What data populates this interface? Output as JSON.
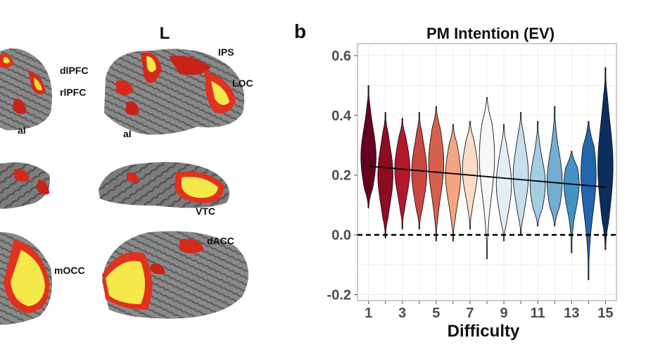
{
  "brain_panel": {
    "hemisphere_label": "L",
    "region_labels": {
      "dlpfc": "dlPFC",
      "rlpfc": "rlPFC",
      "ai_left": "aI",
      "ai_right": "aI",
      "ips": "IPS",
      "loc": "LOC",
      "vtc": "VTC",
      "dacc": "dACC",
      "mocc": "mOCC"
    }
  },
  "panel_letter": "b",
  "chart_data": {
    "type": "violin",
    "title": "PM Intention (EV)",
    "xlabel": "Difficulty",
    "ylabel": "",
    "ylim": [
      -0.22,
      0.64
    ],
    "y_ticks": [
      -0.2,
      0.0,
      0.2,
      0.4,
      0.6
    ],
    "y_tick_labels": [
      "-0.2",
      "0.0",
      "0.2",
      "0.4",
      "0.6"
    ],
    "x_ticks": [
      1,
      3,
      5,
      7,
      9,
      11,
      13,
      15
    ],
    "x_tick_labels": [
      "1",
      "3",
      "5",
      "7",
      "9",
      "11",
      "13",
      "15"
    ],
    "grid": true,
    "reference_line": {
      "y": 0.0,
      "style": "dashed"
    },
    "trend_line": {
      "x": [
        1,
        15
      ],
      "y": [
        0.23,
        0.16
      ]
    },
    "series": [
      {
        "x": 1,
        "min": 0.09,
        "max": 0.5,
        "mode": 0.26,
        "color": "#67001f"
      },
      {
        "x": 2,
        "min": -0.01,
        "max": 0.41,
        "mode": 0.2,
        "color": "#8e0b24"
      },
      {
        "x": 3,
        "min": 0.02,
        "max": 0.39,
        "mode": 0.22,
        "color": "#b2182b"
      },
      {
        "x": 4,
        "min": 0.02,
        "max": 0.41,
        "mode": 0.21,
        "color": "#c94741"
      },
      {
        "x": 5,
        "min": -0.02,
        "max": 0.43,
        "mode": 0.24,
        "color": "#d6604d"
      },
      {
        "x": 6,
        "min": -0.02,
        "max": 0.37,
        "mode": 0.2,
        "color": "#f4a582"
      },
      {
        "x": 7,
        "min": 0.02,
        "max": 0.38,
        "mode": 0.22,
        "color": "#fddbc7"
      },
      {
        "x": 8,
        "min": -0.08,
        "max": 0.46,
        "mode": 0.26,
        "color": "#f7f7f7"
      },
      {
        "x": 9,
        "min": -0.02,
        "max": 0.37,
        "mode": 0.17,
        "color": "#e3eff5"
      },
      {
        "x": 10,
        "min": 0.0,
        "max": 0.41,
        "mode": 0.2,
        "color": "#c6dfec"
      },
      {
        "x": 11,
        "min": 0.03,
        "max": 0.38,
        "mode": 0.17,
        "color": "#a3cde3"
      },
      {
        "x": 12,
        "min": 0.03,
        "max": 0.43,
        "mode": 0.18,
        "color": "#74add1"
      },
      {
        "x": 13,
        "min": -0.06,
        "max": 0.28,
        "mode": 0.17,
        "color": "#4393c3"
      },
      {
        "x": 14,
        "min": -0.15,
        "max": 0.38,
        "mode": 0.2,
        "color": "#2166ac"
      },
      {
        "x": 15,
        "min": -0.05,
        "max": 0.56,
        "mode": 0.23,
        "color": "#0b2e5c"
      }
    ]
  }
}
